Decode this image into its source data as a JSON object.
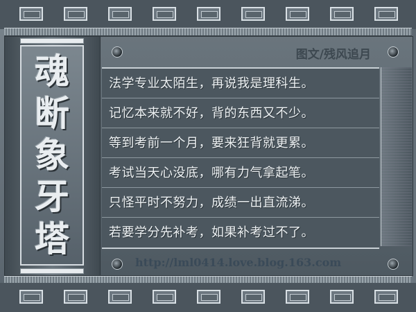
{
  "title": {
    "chars": [
      "魂",
      "断",
      "象",
      "牙",
      "塔"
    ]
  },
  "author": "图文/残风追月",
  "poem": {
    "lines": [
      "法学专业太陌生，再说我是理科生。",
      "记忆本来就不好，背的东西又不少。",
      "等到考前一个月，要来狂背就更累。",
      "考试当天心没底，哪有力气拿起笔。",
      "只怪平时不努力，成绩一出直流涕。",
      "若要学分先补考，如果补考过不了。"
    ]
  },
  "url": "http://lml0414.love.blog.163.com",
  "colors": {
    "background": "#5f6b74",
    "text": "#eef2f4",
    "url": "#3a4a58"
  }
}
